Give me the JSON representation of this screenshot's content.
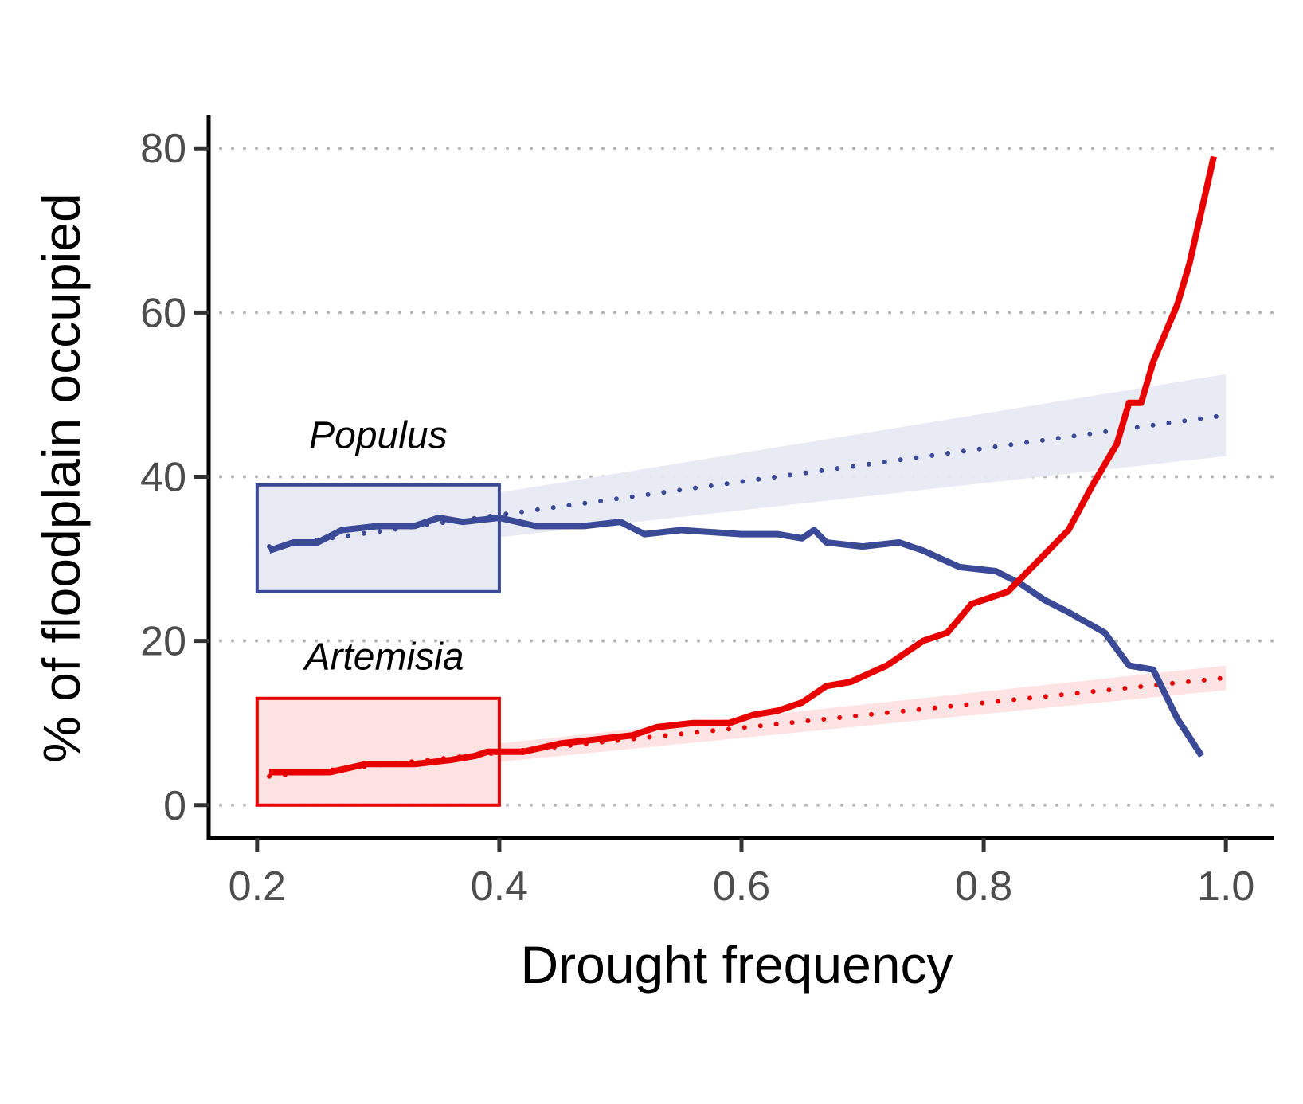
{
  "chart_data": {
    "type": "line",
    "title": "",
    "xlabel": "Drought frequency",
    "ylabel": "% of floodplain occupied",
    "xlim": [
      0.16,
      1.04
    ],
    "ylim": [
      -4,
      84
    ],
    "xticks": [
      0.2,
      0.4,
      0.6,
      0.8,
      1.0
    ],
    "xtick_labels": [
      "0.2",
      "0.4",
      "0.6",
      "0.8",
      "1.0"
    ],
    "yticks": [
      0,
      20,
      40,
      60,
      80
    ],
    "ytick_labels": [
      "0",
      "20",
      "40",
      "60",
      "80"
    ],
    "grid": "horizontal dotted",
    "legend": "none",
    "series": [
      {
        "name": "Populus",
        "color": "#3b4a96",
        "x": [
          0.21,
          0.23,
          0.25,
          0.27,
          0.3,
          0.33,
          0.35,
          0.37,
          0.4,
          0.43,
          0.47,
          0.5,
          0.52,
          0.55,
          0.6,
          0.63,
          0.65,
          0.66,
          0.67,
          0.7,
          0.73,
          0.75,
          0.78,
          0.81,
          0.83,
          0.85,
          0.87,
          0.9,
          0.92,
          0.94,
          0.96,
          0.98
        ],
        "values": [
          31,
          32,
          32,
          33.5,
          34,
          34,
          35,
          34.5,
          35,
          34,
          34,
          34.5,
          33,
          33.5,
          33,
          33,
          32.5,
          33.5,
          32,
          31.5,
          32,
          31,
          29,
          28.5,
          27,
          25,
          23.5,
          21,
          17,
          16.5,
          10.5,
          6
        ]
      },
      {
        "name": "Artemisia",
        "color": "#e80000",
        "x": [
          0.21,
          0.24,
          0.26,
          0.29,
          0.33,
          0.36,
          0.38,
          0.39,
          0.42,
          0.45,
          0.48,
          0.51,
          0.53,
          0.56,
          0.59,
          0.61,
          0.63,
          0.65,
          0.67,
          0.69,
          0.72,
          0.75,
          0.77,
          0.79,
          0.82,
          0.84,
          0.86,
          0.87,
          0.89,
          0.91,
          0.92,
          0.93,
          0.94,
          0.96,
          0.97,
          0.99
        ],
        "values": [
          4,
          4,
          4,
          5,
          5,
          5.5,
          6,
          6.5,
          6.5,
          7.5,
          8,
          8.5,
          9.5,
          10,
          10,
          11,
          11.5,
          12.5,
          14.5,
          15,
          17,
          20,
          21,
          24.5,
          26,
          29,
          32,
          33.5,
          39,
          44,
          49,
          49,
          54,
          61,
          66,
          79
        ]
      }
    ],
    "trends": [
      {
        "name": "Populus",
        "color": "#3b4a96",
        "fill": "#e8eaf3",
        "x": [
          0.21,
          1.0
        ],
        "values": [
          31.5,
          47.5
        ],
        "lower": [
          29.5,
          42.5
        ],
        "upper": [
          33.5,
          52.5
        ]
      },
      {
        "name": "Artemisia",
        "color": "#e80000",
        "fill": "#fde2e2",
        "x": [
          0.21,
          1.0
        ],
        "values": [
          3.5,
          15.5
        ],
        "lower": [
          2.5,
          14
        ],
        "upper": [
          4.5,
          17
        ]
      }
    ],
    "boxes": [
      {
        "name": "Populus",
        "x": [
          0.2,
          0.4
        ],
        "y": [
          26,
          39
        ],
        "edge": "#3b4a96",
        "fill": "#e8eaf3"
      },
      {
        "name": "Artemisia",
        "x": [
          0.2,
          0.4
        ],
        "y": [
          0,
          13
        ],
        "edge": "#e80000",
        "fill": "#fde2e2"
      }
    ],
    "annotations": [
      {
        "text": "Populus",
        "x": 0.3,
        "y": 43.5
      },
      {
        "text": "Artemisia",
        "x": 0.305,
        "y": 16.5
      }
    ]
  }
}
